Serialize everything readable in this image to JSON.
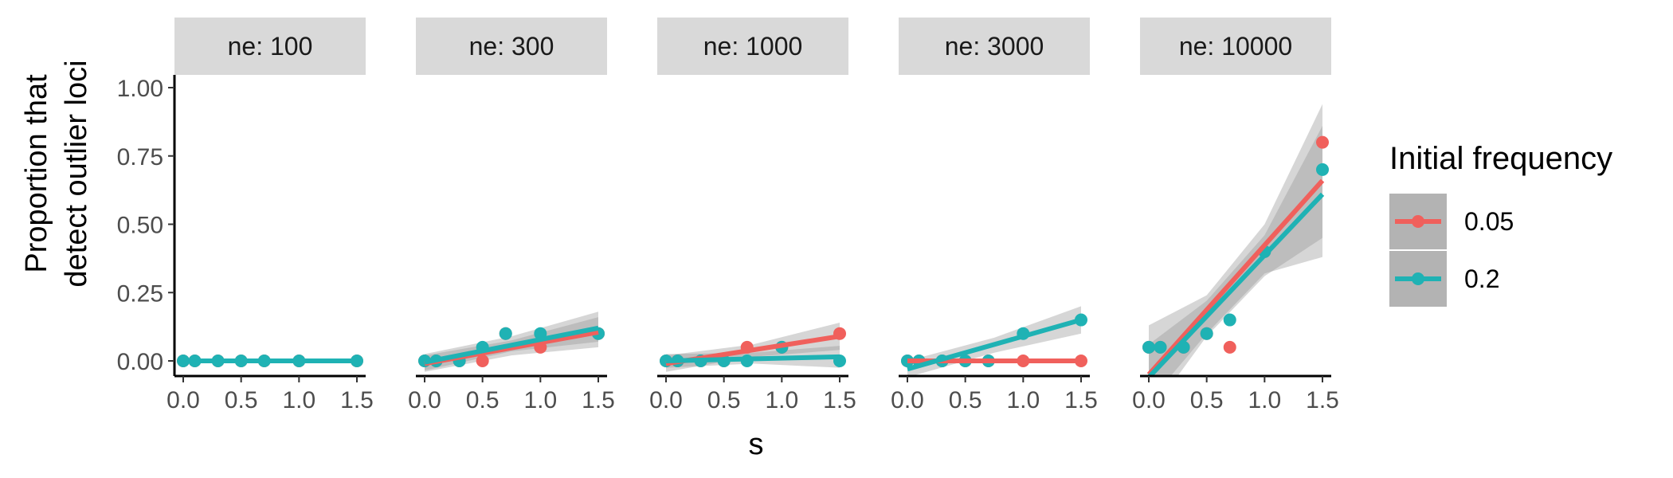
{
  "chart_data": {
    "type": "scatter",
    "xlabel": "s",
    "ylabel_lines": [
      "Proportion that",
      "detect outlier loci"
    ],
    "xlim": [
      0,
      1.5
    ],
    "ylim": [
      0,
      1.0
    ],
    "x_ticks": [
      0.0,
      0.5,
      1.0,
      1.5
    ],
    "x_tick_labels": [
      "0.0",
      "0.5",
      "1.0",
      "1.5"
    ],
    "y_ticks": [
      0,
      0.25,
      0.5,
      0.75,
      1.0
    ],
    "y_tick_labels": [
      "0.00",
      "0.25",
      "0.50",
      "0.75",
      "1.00"
    ],
    "grid": false,
    "legend": {
      "title": "Initial frequency",
      "position": "right",
      "entries": [
        {
          "label": "0.05",
          "color": "#F0605C"
        },
        {
          "label": "0.2",
          "color": "#1FB2B4"
        }
      ]
    },
    "facets": [
      {
        "strip": "ne: 100",
        "series": [
          {
            "name": "0.05",
            "points": [
              [
                0,
                0
              ],
              [
                0.1,
                0
              ],
              [
                0.3,
                0
              ],
              [
                0.5,
                0
              ],
              [
                0.7,
                0
              ],
              [
                1.0,
                0
              ],
              [
                1.5,
                0
              ]
            ],
            "fit": [
              [
                0,
                0
              ],
              [
                1.5,
                0
              ]
            ],
            "ci": null
          },
          {
            "name": "0.2",
            "points": [
              [
                0,
                0
              ],
              [
                0.1,
                0
              ],
              [
                0.3,
                0
              ],
              [
                0.5,
                0
              ],
              [
                0.7,
                0
              ],
              [
                1.0,
                0
              ],
              [
                1.5,
                0
              ]
            ],
            "fit": [
              [
                0,
                0
              ],
              [
                1.5,
                0
              ]
            ],
            "ci": null
          }
        ]
      },
      {
        "strip": "ne: 300",
        "series": [
          {
            "name": "0.05",
            "points": [
              [
                0,
                0
              ],
              [
                0.1,
                0
              ],
              [
                0.3,
                0
              ],
              [
                0.5,
                0
              ],
              [
                0.7,
                0.1
              ],
              [
                1.0,
                0.05
              ],
              [
                1.5,
                0.1
              ]
            ],
            "fit": [
              [
                0,
                -0.01
              ],
              [
                1.5,
                0.105
              ]
            ],
            "ci": {
              "lower": [
                [
                  0,
                  -0.04
                ],
                [
                  0.75,
                  0.02
                ],
                [
                  1.5,
                  0.05
                ]
              ],
              "upper": [
                [
                  0,
                  0.02
                ],
                [
                  0.75,
                  0.075
                ],
                [
                  1.5,
                  0.16
                ]
              ]
            }
          },
          {
            "name": "0.2",
            "points": [
              [
                0,
                0
              ],
              [
                0.1,
                0
              ],
              [
                0.3,
                0
              ],
              [
                0.5,
                0.05
              ],
              [
                0.7,
                0.1
              ],
              [
                1.0,
                0.1
              ],
              [
                1.5,
                0.1
              ]
            ],
            "fit": [
              [
                0,
                -0.005
              ],
              [
                1.5,
                0.12
              ]
            ],
            "ci": {
              "lower": [
                [
                  0,
                  -0.035
                ],
                [
                  0.75,
                  0.035
                ],
                [
                  1.5,
                  0.07
                ]
              ],
              "upper": [
                [
                  0,
                  0.025
                ],
                [
                  0.75,
                  0.09
                ],
                [
                  1.5,
                  0.18
                ]
              ]
            }
          }
        ]
      },
      {
        "strip": "ne: 1000",
        "series": [
          {
            "name": "0.05",
            "points": [
              [
                0,
                0
              ],
              [
                0.1,
                0
              ],
              [
                0.3,
                0
              ],
              [
                0.5,
                0
              ],
              [
                0.7,
                0.05
              ],
              [
                1.0,
                0.05
              ],
              [
                1.5,
                0.1
              ]
            ],
            "fit": [
              [
                0,
                -0.01
              ],
              [
                1.5,
                0.09
              ]
            ],
            "ci": {
              "lower": [
                [
                  0,
                  -0.04
                ],
                [
                  0.75,
                  0.015
                ],
                [
                  1.5,
                  0.04
                ]
              ],
              "upper": [
                [
                  0,
                  0.02
                ],
                [
                  0.75,
                  0.06
                ],
                [
                  1.5,
                  0.14
                ]
              ]
            }
          },
          {
            "name": "0.2",
            "points": [
              [
                0,
                0
              ],
              [
                0.1,
                0
              ],
              [
                0.3,
                0
              ],
              [
                0.5,
                0
              ],
              [
                0.7,
                0
              ],
              [
                1.0,
                0.05
              ],
              [
                1.5,
                0
              ]
            ],
            "fit": [
              [
                0,
                0.0
              ],
              [
                1.5,
                0.015
              ]
            ],
            "ci": {
              "lower": [
                [
                  0,
                  -0.025
                ],
                [
                  0.75,
                  -0.01
                ],
                [
                  1.5,
                  -0.025
                ]
              ],
              "upper": [
                [
                  0,
                  0.025
                ],
                [
                  0.75,
                  0.03
                ],
                [
                  1.5,
                  0.055
                ]
              ]
            }
          }
        ]
      },
      {
        "strip": "ne: 3000",
        "series": [
          {
            "name": "0.05",
            "points": [
              [
                0,
                0
              ],
              [
                0.1,
                0
              ],
              [
                0.3,
                0
              ],
              [
                0.5,
                0
              ],
              [
                0.7,
                0
              ],
              [
                1.0,
                0
              ],
              [
                1.5,
                0
              ]
            ],
            "fit": [
              [
                0,
                0
              ],
              [
                1.5,
                0
              ]
            ],
            "ci": null
          },
          {
            "name": "0.2",
            "points": [
              [
                0,
                0
              ],
              [
                0.1,
                0
              ],
              [
                0.3,
                0
              ],
              [
                0.5,
                0
              ],
              [
                0.7,
                0
              ],
              [
                1.0,
                0.1
              ],
              [
                1.5,
                0.15
              ]
            ],
            "fit": [
              [
                0,
                -0.03
              ],
              [
                1.5,
                0.15
              ]
            ],
            "ci": {
              "lower": [
                [
                  0,
                  -0.06
                ],
                [
                  0.75,
                  0.03
                ],
                [
                  1.5,
                  0.1
                ]
              ],
              "upper": [
                [
                  0,
                  0.0
                ],
                [
                  0.75,
                  0.085
                ],
                [
                  1.5,
                  0.2
                ]
              ]
            }
          }
        ]
      },
      {
        "strip": "ne: 10000",
        "series": [
          {
            "name": "0.05",
            "points": [
              [
                0,
                0.05
              ],
              [
                0.1,
                0.05
              ],
              [
                0.3,
                0.05
              ],
              [
                0.5,
                0.1
              ],
              [
                0.7,
                0.05
              ],
              [
                1.0,
                0.4
              ],
              [
                1.5,
                0.8
              ]
            ],
            "fit": [
              [
                0,
                -0.05
              ],
              [
                1.5,
                0.66
              ]
            ],
            "ci": {
              "lower": [
                [
                  0,
                  -0.2
                ],
                [
                  0.5,
                  0.09
                ],
                [
                  1.0,
                  0.31
                ],
                [
                  1.5,
                  0.45
                ]
              ],
              "upper": [
                [
                  0,
                  0.13
                ],
                [
                  0.5,
                  0.24
                ],
                [
                  1.0,
                  0.5
                ],
                [
                  1.5,
                  0.94
                ]
              ]
            }
          },
          {
            "name": "0.2",
            "points": [
              [
                0,
                0.05
              ],
              [
                0.1,
                0.05
              ],
              [
                0.3,
                0.05
              ],
              [
                0.5,
                0.1
              ],
              [
                0.7,
                0.15
              ],
              [
                1.0,
                0.4
              ],
              [
                1.5,
                0.7
              ]
            ],
            "fit": [
              [
                0,
                -0.06
              ],
              [
                1.5,
                0.61
              ]
            ],
            "ci": {
              "lower": [
                [
                  0,
                  -0.15
                ],
                [
                  0.5,
                  0.1
                ],
                [
                  1.0,
                  0.32
                ],
                [
                  1.5,
                  0.38
                ]
              ],
              "upper": [
                [
                  0,
                  0.06
                ],
                [
                  0.5,
                  0.22
                ],
                [
                  1.0,
                  0.46
                ],
                [
                  1.5,
                  0.86
                ]
              ]
            }
          }
        ]
      }
    ]
  }
}
